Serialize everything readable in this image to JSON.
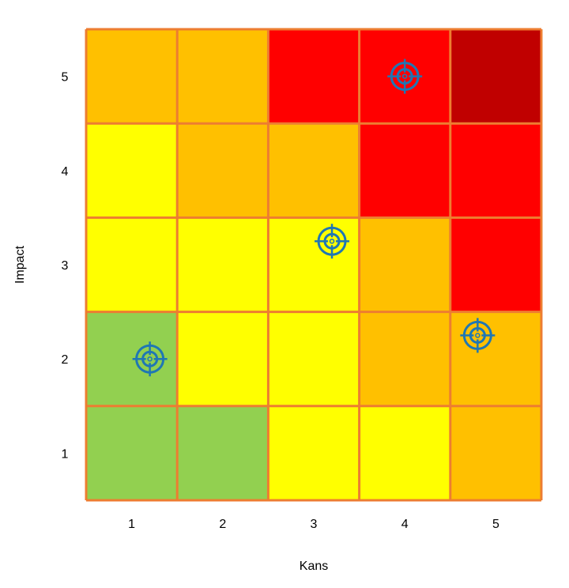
{
  "chart_data": {
    "type": "heatmap",
    "xlabel": "Kans",
    "ylabel": "Impact",
    "x": [
      1,
      2,
      3,
      4,
      5
    ],
    "y": [
      1,
      2,
      3,
      4,
      5
    ],
    "xlim": [
      0.5,
      5.5
    ],
    "ylim": [
      0.5,
      5.5
    ],
    "x_ticks": [
      "1",
      "2",
      "3",
      "4",
      "5"
    ],
    "y_ticks": [
      "1",
      "2",
      "3",
      "4",
      "5"
    ],
    "grid": true,
    "grid_color": "#ED7D31",
    "cells": [
      {
        "x": 1,
        "y": 5,
        "color": "#FFC000"
      },
      {
        "x": 2,
        "y": 5,
        "color": "#FFC000"
      },
      {
        "x": 3,
        "y": 5,
        "color": "#FF0000"
      },
      {
        "x": 4,
        "y": 5,
        "color": "#FF0000"
      },
      {
        "x": 5,
        "y": 5,
        "color": "#C00000"
      },
      {
        "x": 1,
        "y": 4,
        "color": "#FFFF00"
      },
      {
        "x": 2,
        "y": 4,
        "color": "#FFC000"
      },
      {
        "x": 3,
        "y": 4,
        "color": "#FFC000"
      },
      {
        "x": 4,
        "y": 4,
        "color": "#FF0000"
      },
      {
        "x": 5,
        "y": 4,
        "color": "#FF0000"
      },
      {
        "x": 1,
        "y": 3,
        "color": "#FFFF00"
      },
      {
        "x": 2,
        "y": 3,
        "color": "#FFFF00"
      },
      {
        "x": 3,
        "y": 3,
        "color": "#FFFF00"
      },
      {
        "x": 4,
        "y": 3,
        "color": "#FFC000"
      },
      {
        "x": 5,
        "y": 3,
        "color": "#FF0000"
      },
      {
        "x": 1,
        "y": 2,
        "color": "#92D050"
      },
      {
        "x": 2,
        "y": 2,
        "color": "#FFFF00"
      },
      {
        "x": 3,
        "y": 2,
        "color": "#FFFF00"
      },
      {
        "x": 4,
        "y": 2,
        "color": "#FFC000"
      },
      {
        "x": 5,
        "y": 2,
        "color": "#FFC000"
      },
      {
        "x": 1,
        "y": 1,
        "color": "#92D050"
      },
      {
        "x": 2,
        "y": 1,
        "color": "#92D050"
      },
      {
        "x": 3,
        "y": 1,
        "color": "#FFFF00"
      },
      {
        "x": 4,
        "y": 1,
        "color": "#FFFF00"
      },
      {
        "x": 5,
        "y": 1,
        "color": "#FFC000"
      }
    ],
    "markers": {
      "icon": "crosshair-target-icon",
      "color": "#1F77B4",
      "points": [
        {
          "x": 1.2,
          "y": 2.0
        },
        {
          "x": 3.2,
          "y": 3.25
        },
        {
          "x": 4.0,
          "y": 5.0
        },
        {
          "x": 4.8,
          "y": 2.25
        }
      ]
    }
  }
}
